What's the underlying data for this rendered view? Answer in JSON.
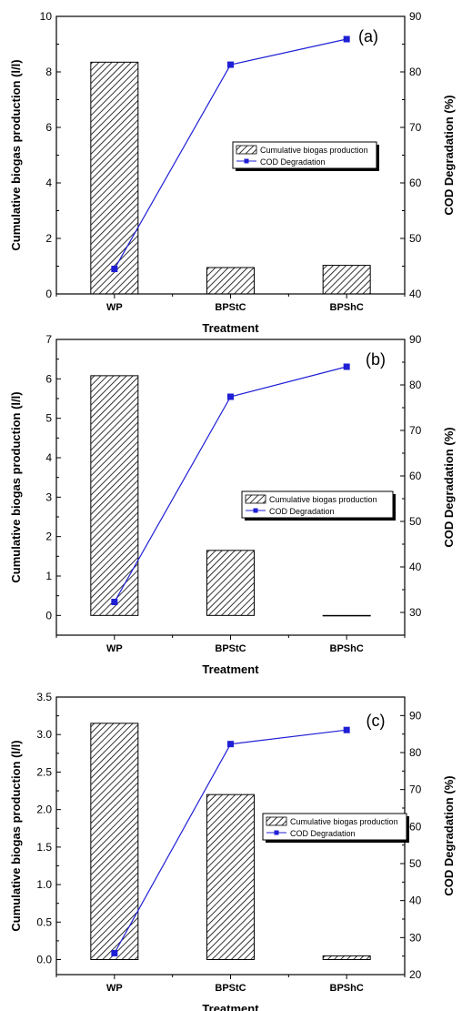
{
  "chart_data": [
    {
      "type": "bar",
      "panel_label": "(a)",
      "categories": [
        "WP",
        "BPStC",
        "BPShC"
      ],
      "xlabel": "Treatment",
      "ylabel": "Cumulative biogas production (l/l)",
      "y2label": "COD Degradation (%)",
      "ylim": [
        0,
        10
      ],
      "yticks": [
        "0",
        "2",
        "4",
        "6",
        "8",
        "10"
      ],
      "y2lim": [
        40,
        90
      ],
      "y2ticks": [
        "40",
        "50",
        "60",
        "70",
        "80",
        "90"
      ],
      "legend_position": "center-right",
      "series": [
        {
          "name": "Cumulative biogas production",
          "kind": "bar",
          "axis": "left",
          "values": [
            8.35,
            0.95,
            1.03
          ]
        },
        {
          "name": "COD Degradation",
          "kind": "line",
          "axis": "right",
          "values": [
            44.5,
            81.3,
            85.9
          ]
        }
      ]
    },
    {
      "type": "bar",
      "panel_label": "(b)",
      "categories": [
        "WP",
        "BPStC",
        "BPShC"
      ],
      "xlabel": "Treatment",
      "ylabel": "Cumulative biogas production (l/l)",
      "y2label": "COD Degradation (%)",
      "ylim": [
        -0.5,
        7
      ],
      "yticks": [
        "0",
        "1",
        "2",
        "3",
        "4",
        "5",
        "6",
        "7"
      ],
      "y2lim": [
        25,
        90
      ],
      "y2ticks": [
        "30",
        "40",
        "50",
        "60",
        "70",
        "80",
        "90"
      ],
      "legend_position": "center-right",
      "series": [
        {
          "name": "Cumulative biogas production",
          "kind": "bar",
          "axis": "left",
          "values": [
            6.08,
            1.65,
            0.0
          ]
        },
        {
          "name": "COD Degradation",
          "kind": "line",
          "axis": "right",
          "values": [
            32.3,
            77.4,
            84.0
          ]
        }
      ]
    },
    {
      "type": "bar",
      "panel_label": "(c)",
      "categories": [
        "WP",
        "BPStC",
        "BPShC"
      ],
      "xlabel": "Treatment",
      "ylabel": "Cumulative biogas production (l/l)",
      "y2label": "COD Degradation (%)",
      "ylim": [
        -0.2,
        3.5
      ],
      "yticks": [
        "0.0",
        "0.5",
        "1.0",
        "1.5",
        "2.0",
        "2.5",
        "3.0",
        "3.5"
      ],
      "y2lim": [
        20,
        95
      ],
      "y2ticks": [
        "20",
        "30",
        "40",
        "50",
        "60",
        "70",
        "80",
        "90"
      ],
      "legend_position": "center-right",
      "series": [
        {
          "name": "Cumulative biogas production",
          "kind": "bar",
          "axis": "left",
          "values": [
            3.15,
            2.2,
            0.05
          ]
        },
        {
          "name": "COD Degradation",
          "kind": "line",
          "axis": "right",
          "values": [
            25.8,
            82.3,
            86.1
          ]
        }
      ]
    }
  ],
  "colors": {
    "line": "#1f1fd6",
    "marker": "#1f1fd6",
    "axis": "#000000",
    "hatch": "#000000",
    "bar_fill": "#ffffff"
  }
}
